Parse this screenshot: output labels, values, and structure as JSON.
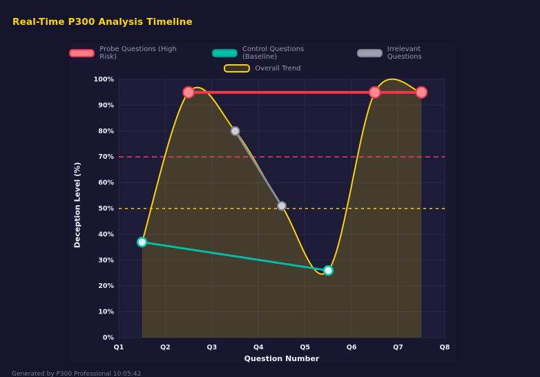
{
  "page": {
    "title": "Real-Time P300 Analysis Timeline",
    "footer": "Generated by P300 Professional 10:05:42"
  },
  "colors": {
    "page_bg": "#14142b",
    "card_bg": "#17172f",
    "plot_bg": "#1c1c38",
    "grid": "#28284a",
    "area_fill": "rgba(255,212,0,0.18)",
    "tick_label": "#e9ebf5",
    "axis_title": "#eef1f8",
    "title": "#ffd400",
    "legend_label": "#9298ad",
    "footer": "#787d92"
  },
  "chart_data": {
    "type": "line",
    "title": "Real-Time P300 Analysis Timeline",
    "xlabel": "Question Number",
    "ylabel": "Deception Level (%)",
    "x_ticks": [
      "Q1",
      "Q2",
      "Q3",
      "Q4",
      "Q5",
      "Q6",
      "Q7",
      "Q8"
    ],
    "x_range": [
      1,
      8
    ],
    "y_ticks": [
      "0%",
      "10%",
      "20%",
      "30%",
      "40%",
      "50%",
      "60%",
      "70%",
      "80%",
      "90%",
      "100%"
    ],
    "y_range": [
      0,
      100
    ],
    "grid": true,
    "legend_position": "top",
    "series": [
      {
        "name": "Probe Questions (High Risk)",
        "color": "#f2394b",
        "width": 4,
        "marker_r": 8,
        "marker_fill": "#ff8a93",
        "marker_stroke": "#e8374a",
        "marker_stroke_width": 2,
        "swatch_fill": "#ff7b87",
        "swatch_border": "#e8374a",
        "points": [
          [
            2.5,
            95
          ],
          [
            6.5,
            95
          ],
          [
            7.5,
            95
          ]
        ]
      },
      {
        "name": "Control Questions (Baseline)",
        "color": "#00bfa8",
        "width": 3,
        "marker_r": 6.5,
        "marker_fill": "#d9f4f1",
        "marker_stroke": "#00bfa8",
        "marker_stroke_width": 2.5,
        "swatch_fill": "#00bfa8",
        "swatch_border": "#009c8d",
        "points": [
          [
            1.5,
            37
          ],
          [
            5.5,
            26
          ]
        ]
      },
      {
        "name": "Irrelevant Questions",
        "color": "#8b8b98",
        "width": 3,
        "marker_r": 6,
        "marker_fill": "#d0d0d6",
        "marker_stroke": "#80818e",
        "marker_stroke_width": 2,
        "swatch_fill": "#9fa0ad",
        "swatch_border": "#848594",
        "points": [
          [
            3.5,
            80
          ],
          [
            4.5,
            51
          ]
        ]
      },
      {
        "name": "Overall Trend",
        "color": "#ffd400",
        "width": 2,
        "marker_r": 0,
        "smooth": true,
        "area": true,
        "swatch_fill": "rgba(255,212,0,0.15)",
        "swatch_border": "#ffd400",
        "points": [
          [
            1.5,
            37
          ],
          [
            2.5,
            95
          ],
          [
            3.5,
            80
          ],
          [
            4.5,
            51
          ],
          [
            5.5,
            26
          ],
          [
            6.5,
            95
          ],
          [
            7.5,
            95
          ]
        ]
      }
    ],
    "thresholds": [
      {
        "value": 70,
        "color": "#ff3e6e",
        "dash": "7 5",
        "width": 1.5
      },
      {
        "value": 50,
        "color": "#ffd400",
        "dash": "4 5",
        "width": 1.5
      }
    ],
    "legend_rows": [
      [
        0,
        1,
        2
      ],
      [
        3
      ]
    ]
  }
}
